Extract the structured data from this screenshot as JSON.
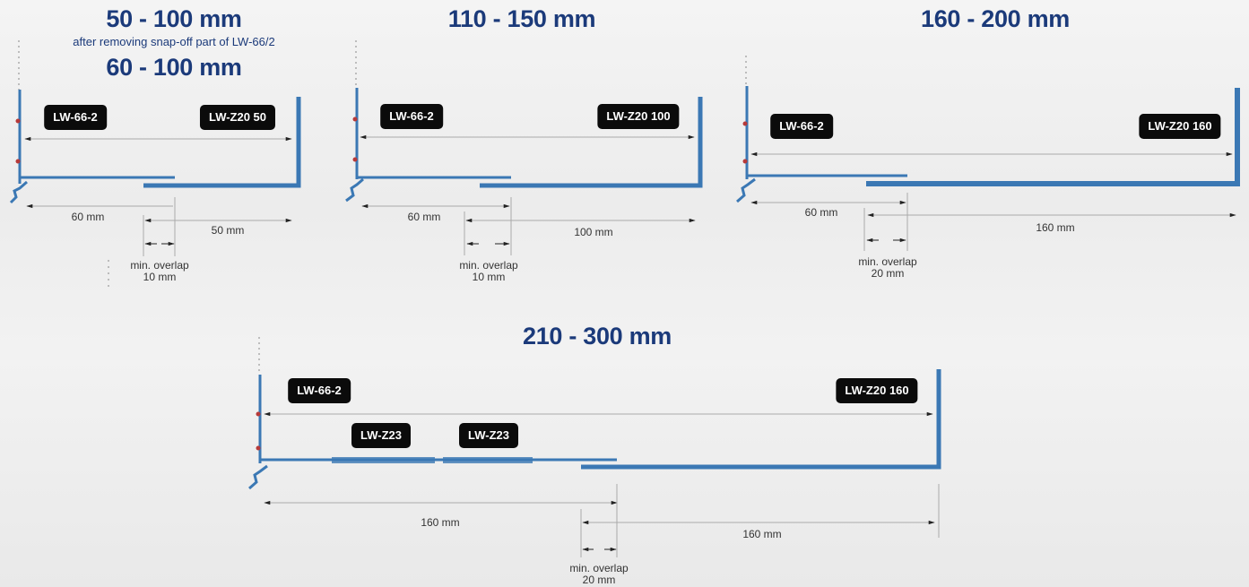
{
  "panels": {
    "p1": {
      "title": "50 - 100 mm",
      "subtitle": "after removing snap-off part of LW-66/2",
      "title2": "60 - 100 mm",
      "left_label": "LW-66-2",
      "right_label": "LW-Z20 50",
      "dim_left": "60 mm",
      "dim_right": "50 mm",
      "overlap_line1": "min. overlap",
      "overlap_line2": "10 mm"
    },
    "p2": {
      "title": "110 - 150 mm",
      "left_label": "LW-66-2",
      "right_label": "LW-Z20 100",
      "dim_left": "60 mm",
      "dim_right": "100 mm",
      "overlap_line1": "min. overlap",
      "overlap_line2": "10 mm"
    },
    "p3": {
      "title": "160 - 200 mm",
      "left_label": "LW-66-2",
      "right_label": "LW-Z20 160",
      "dim_left": "60 mm",
      "dim_right": "160 mm",
      "overlap_line1": "min. overlap",
      "overlap_line2": "20 mm"
    },
    "p4": {
      "title": "210 - 300 mm",
      "left_label": "LW-66-2",
      "right_label": "LW-Z20 160",
      "mid_label_1": "LW-Z23",
      "mid_label_2": "LW-Z23",
      "dim_left": "160 mm",
      "dim_right": "160 mm",
      "overlap_line1": "min. overlap",
      "overlap_line2": "20 mm"
    }
  },
  "colors": {
    "title": "#1b3a7a",
    "profile": "#3b78b4",
    "tag_bg": "#0b0b0b",
    "dimension": "#222222"
  }
}
